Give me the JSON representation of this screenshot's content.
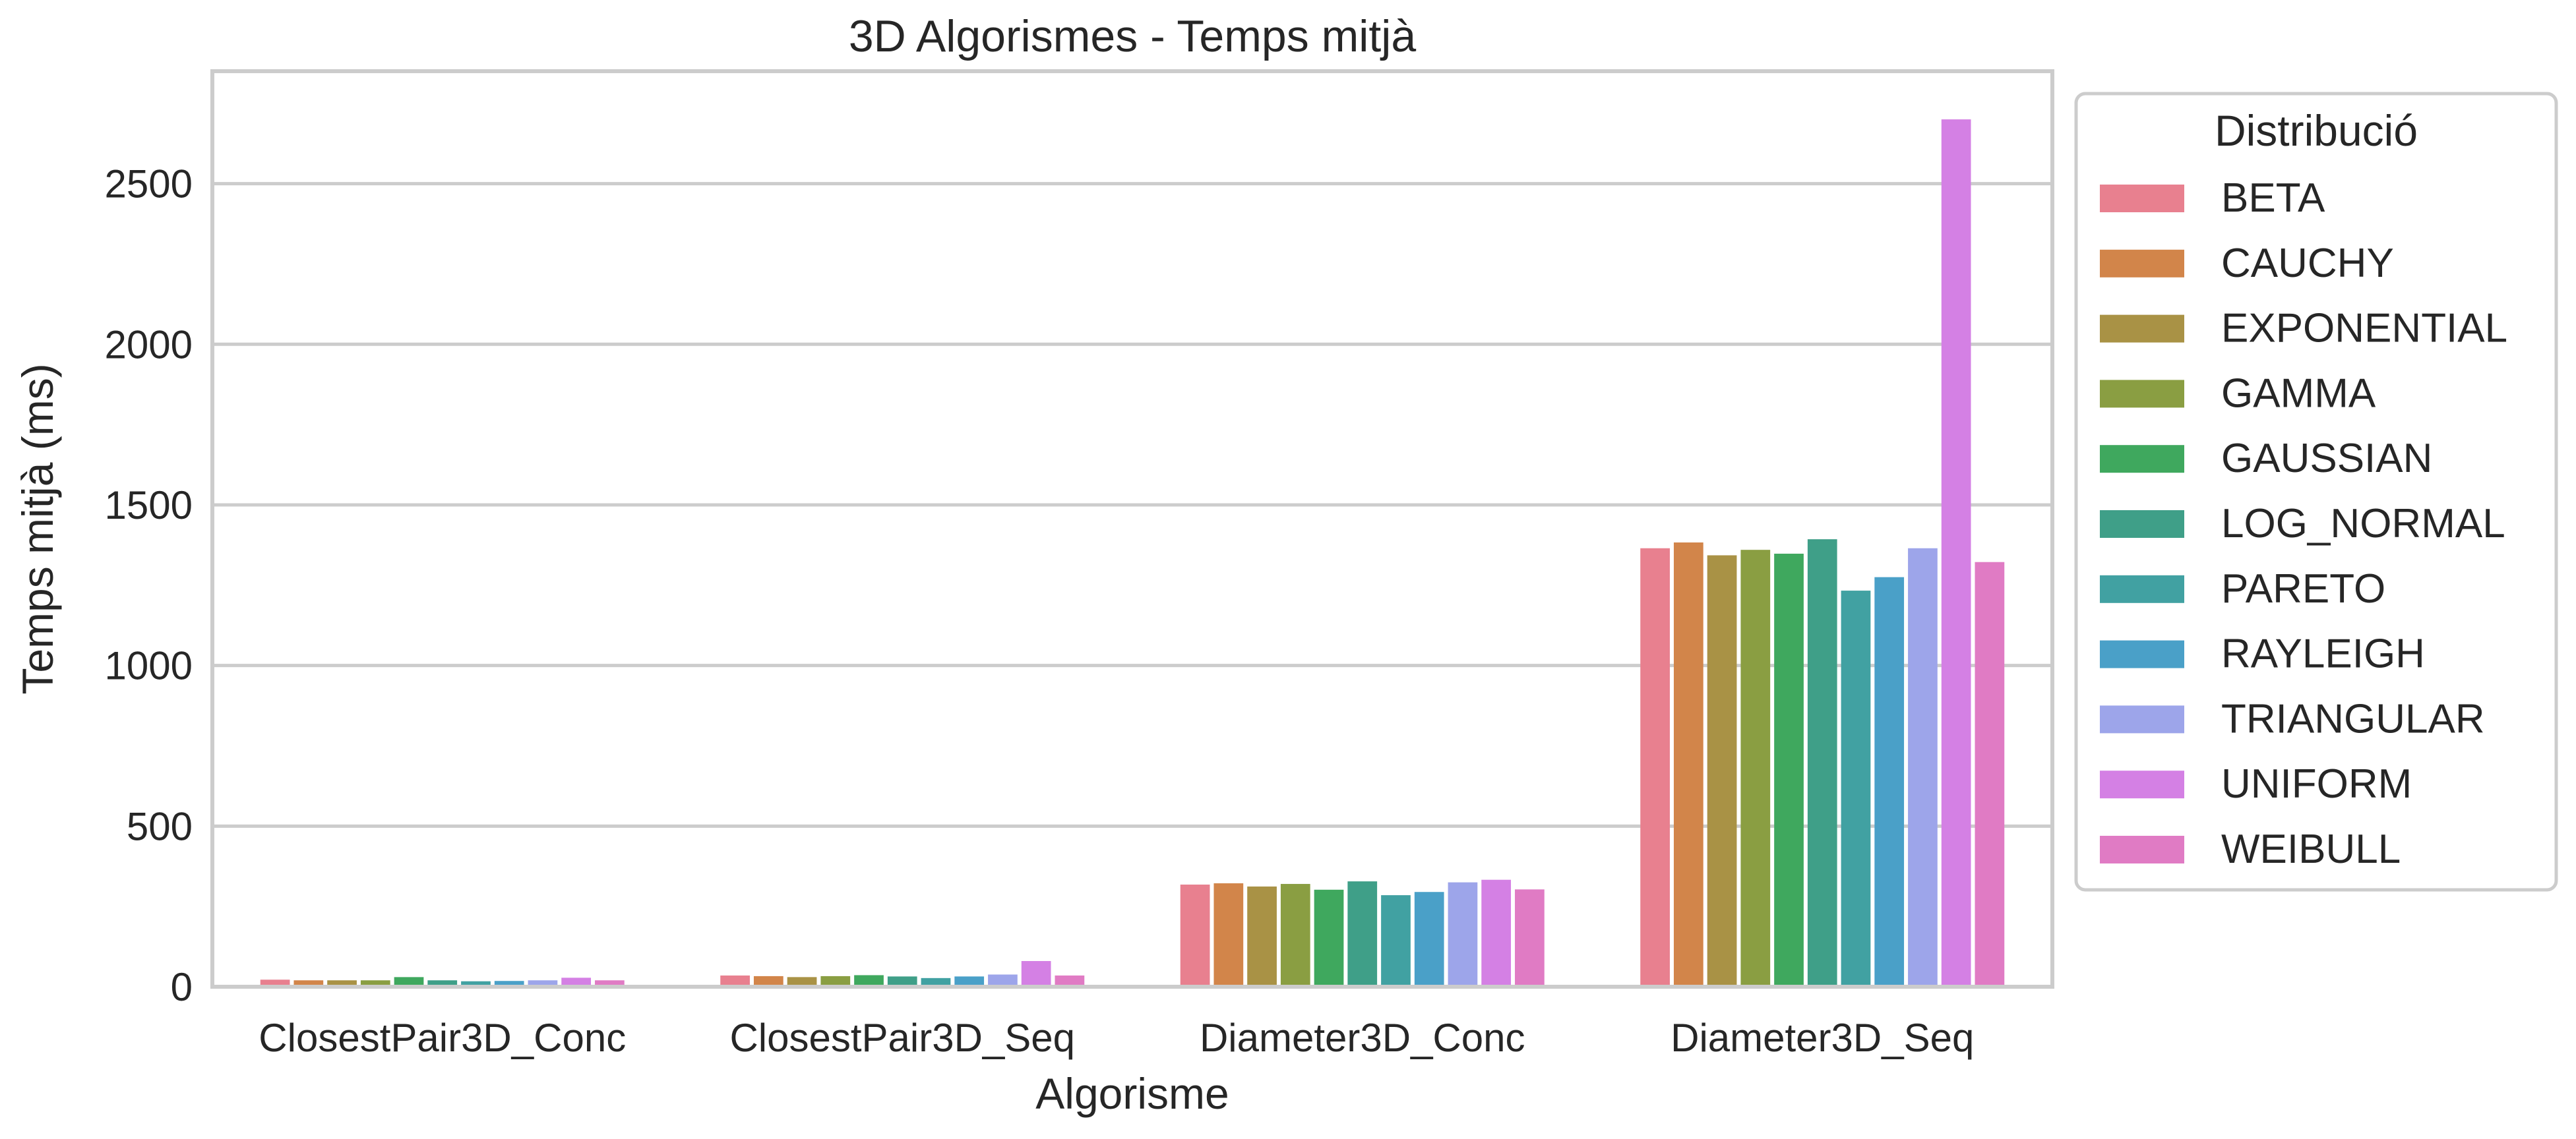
{
  "chart_data": {
    "type": "bar",
    "title": "3D Algorismes - Temps mitjà",
    "xlabel": "Algorisme",
    "ylabel": "Temps mitjà (ms)",
    "ylim": [
      0,
      2850
    ],
    "yticks": [
      0,
      500,
      1000,
      1500,
      2000,
      2500
    ],
    "grid": true,
    "legend_title": "Distribució",
    "legend_position": "outside-right",
    "categories": [
      "ClosestPair3D_Conc",
      "ClosestPair3D_Seq",
      "Diameter3D_Conc",
      "Diameter3D_Seq"
    ],
    "series": [
      {
        "name": "BETA",
        "color": "#e8808f",
        "values": [
          22,
          35,
          318,
          1365
        ]
      },
      {
        "name": "CAUCHY",
        "color": "#d2854a",
        "values": [
          20,
          33,
          322,
          1383
        ]
      },
      {
        "name": "EXPONENTIAL",
        "color": "#a99245",
        "values": [
          20,
          30,
          312,
          1343
        ]
      },
      {
        "name": "GAMMA",
        "color": "#8a9e42",
        "values": [
          20,
          33,
          320,
          1360
        ]
      },
      {
        "name": "GAUSSIAN",
        "color": "#3fa85e",
        "values": [
          30,
          36,
          302,
          1348
        ]
      },
      {
        "name": "LOG_NORMAL",
        "color": "#3f9f88",
        "values": [
          20,
          32,
          328,
          1393
        ]
      },
      {
        "name": "PARETO",
        "color": "#41a1a2",
        "values": [
          17,
          27,
          285,
          1233
        ]
      },
      {
        "name": "RAYLEIGH",
        "color": "#4aa0c8",
        "values": [
          18,
          32,
          295,
          1275
        ]
      },
      {
        "name": "TRIANGULAR",
        "color": "#9da5ea",
        "values": [
          20,
          38,
          325,
          1365
        ]
      },
      {
        "name": "UNIFORM",
        "color": "#d480e4",
        "values": [
          28,
          80,
          333,
          2700
        ]
      },
      {
        "name": "WEIBULL",
        "color": "#e07bc4",
        "values": [
          20,
          35,
          303,
          1322
        ]
      }
    ]
  }
}
